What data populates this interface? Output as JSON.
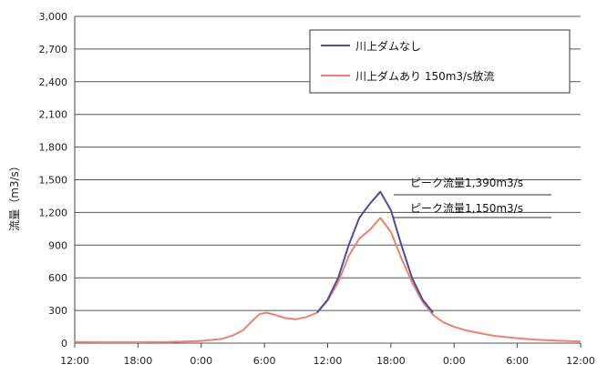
{
  "chart_data": {
    "type": "line",
    "ylabel": "流量（m3/s）",
    "xlabel": "",
    "ylim": [
      0,
      3000
    ],
    "yticks": [
      0,
      300,
      600,
      900,
      1200,
      1500,
      1800,
      2100,
      2400,
      2700,
      3000
    ],
    "ytick_labels": [
      "0",
      "300",
      "600",
      "900",
      "1,200",
      "1,500",
      "1,800",
      "2,100",
      "2,400",
      "2,700",
      "3,000"
    ],
    "xlim": [
      0,
      48
    ],
    "xticks": [
      0,
      6,
      12,
      18,
      24,
      30,
      36,
      42,
      48
    ],
    "xtick_labels": [
      "12:00",
      "18:00",
      "0:00",
      "6:00",
      "12:00",
      "18:00",
      "0:00",
      "6:00",
      "12:00"
    ],
    "grid": "horizontal",
    "legend_position": "top-right",
    "series": [
      {
        "name": "川上ダムなし",
        "color": "#4b4fa0",
        "points": [
          [
            23,
            280
          ],
          [
            24,
            400
          ],
          [
            25,
            600
          ],
          [
            26,
            900
          ],
          [
            27,
            1150
          ],
          [
            28,
            1280
          ],
          [
            29,
            1390
          ],
          [
            30,
            1220
          ],
          [
            31,
            900
          ],
          [
            32,
            600
          ],
          [
            33,
            400
          ],
          [
            34,
            280
          ]
        ]
      },
      {
        "name": "川上ダムあり 150m3/s放流",
        "color": "#f08070",
        "points": [
          [
            0,
            10
          ],
          [
            3,
            8
          ],
          [
            6,
            8
          ],
          [
            9,
            10
          ],
          [
            12,
            20
          ],
          [
            14,
            40
          ],
          [
            15,
            70
          ],
          [
            16,
            120
          ],
          [
            16.8,
            200
          ],
          [
            17.5,
            265
          ],
          [
            18.2,
            280
          ],
          [
            19,
            260
          ],
          [
            20,
            230
          ],
          [
            21,
            220
          ],
          [
            22,
            240
          ],
          [
            23,
            280
          ],
          [
            24,
            390
          ],
          [
            25,
            560
          ],
          [
            26,
            800
          ],
          [
            27,
            960
          ],
          [
            28,
            1040
          ],
          [
            29,
            1150
          ],
          [
            30,
            1020
          ],
          [
            31,
            780
          ],
          [
            32,
            560
          ],
          [
            33,
            380
          ],
          [
            34,
            260
          ],
          [
            35,
            190
          ],
          [
            36,
            150
          ],
          [
            37,
            120
          ],
          [
            38,
            100
          ],
          [
            39,
            80
          ],
          [
            40,
            65
          ],
          [
            42,
            45
          ],
          [
            44,
            30
          ],
          [
            46,
            22
          ],
          [
            48,
            15
          ]
        ]
      }
    ],
    "annotations": [
      {
        "text": "ピーク流量1,390m3/s",
        "x": 29,
        "y": 1390
      },
      {
        "text": "ピーク流量1,150m3/s",
        "x": 29,
        "y": 1150
      }
    ]
  }
}
